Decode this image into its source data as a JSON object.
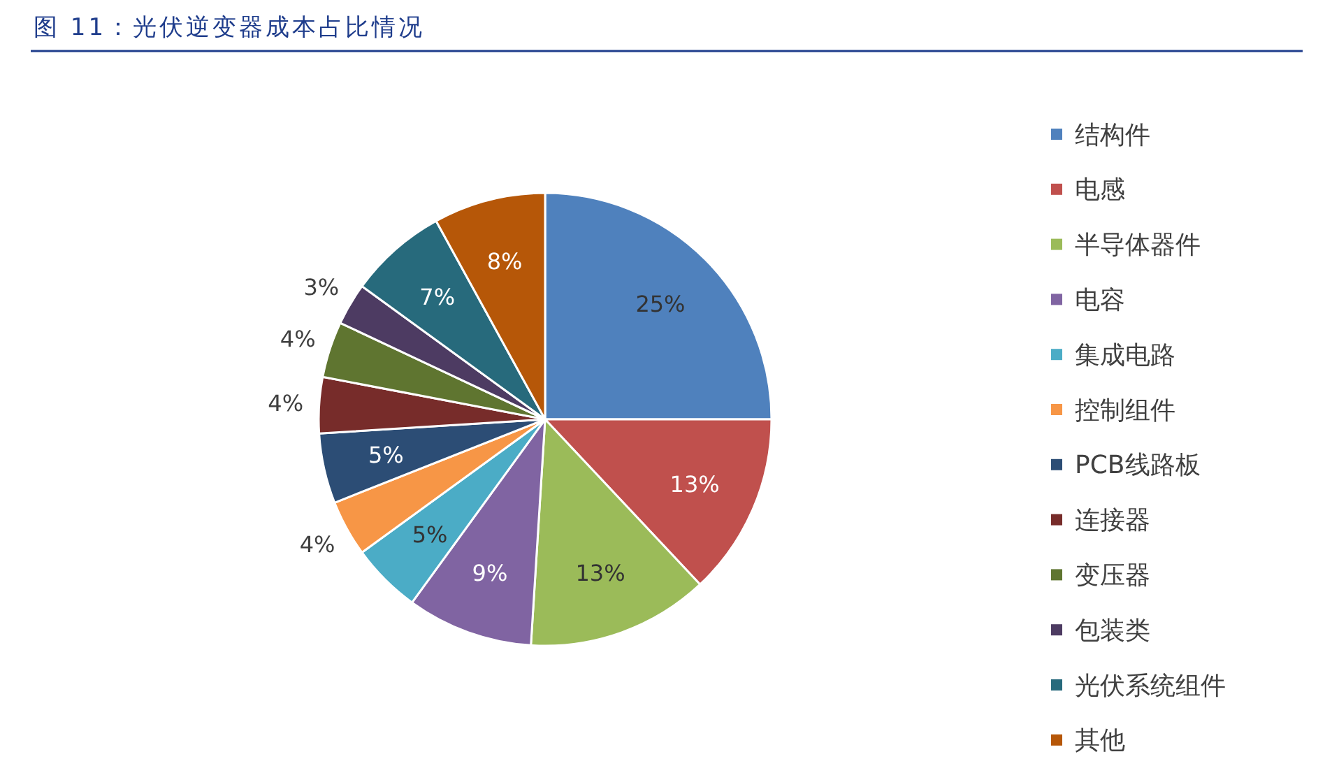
{
  "chart_data": {
    "type": "pie",
    "title": "图 11：光伏逆变器成本占比情况",
    "categories": [
      "结构件",
      "电感",
      "半导体器件",
      "电容",
      "集成电路",
      "控制组件",
      "PCB线路板",
      "连接器",
      "变压器",
      "包装类",
      "光伏系统组件",
      "其他"
    ],
    "values": [
      25,
      13,
      13,
      9,
      5,
      4,
      5,
      4,
      4,
      3,
      7,
      8
    ],
    "value_labels": [
      "25%",
      "13%",
      "13%",
      "9%",
      "5%",
      "4%",
      "5%",
      "4%",
      "4%",
      "3%",
      "7%",
      "8%"
    ],
    "colors": [
      "#4f81bd",
      "#c0504d",
      "#9bbb59",
      "#8064a2",
      "#4bacc6",
      "#f79646",
      "#2c4d75",
      "#772c2a",
      "#5f7530",
      "#4d3b62",
      "#276a7c",
      "#b65708"
    ],
    "legend": "right"
  }
}
